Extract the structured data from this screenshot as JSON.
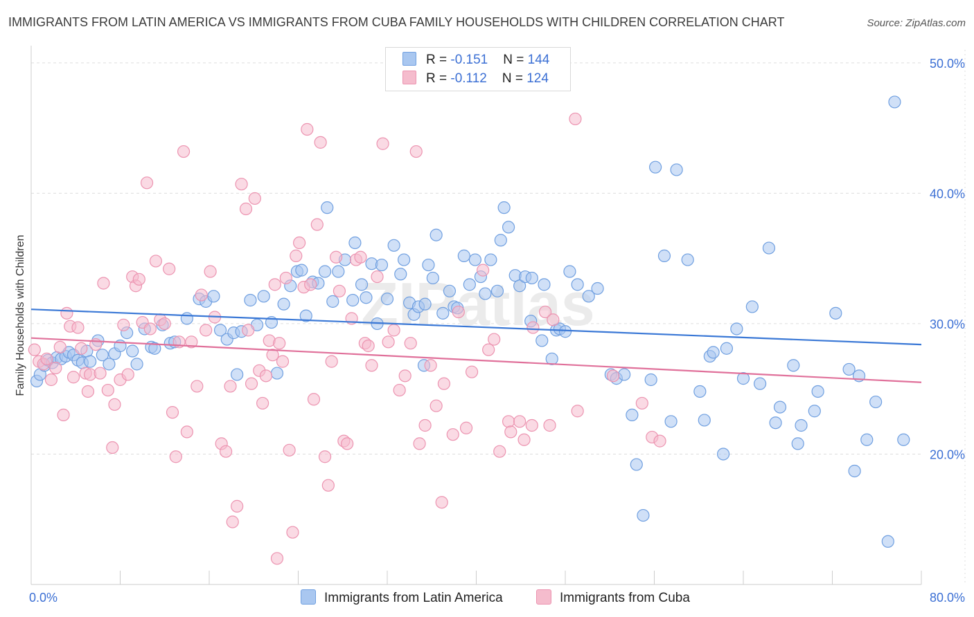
{
  "title": "IMMIGRANTS FROM LATIN AMERICA VS IMMIGRANTS FROM CUBA FAMILY HOUSEHOLDS WITH CHILDREN CORRELATION CHART",
  "source": "Source: ZipAtlas.com",
  "watermark": "ZIPatlas",
  "colors": {
    "blue_fill": "#a9c7f0",
    "blue_stroke": "#6f9fe0",
    "blue_line": "#3a78d6",
    "pink_fill": "#f5bccd",
    "pink_stroke": "#ec93b0",
    "pink_line": "#e0709a",
    "axis_text": "#3b6fd4",
    "grid": "#dddddd"
  },
  "legend": {
    "rows": [
      {
        "r_label": "R = ",
        "r_value": "-0.151",
        "n_label": "N = ",
        "n_value": "144"
      },
      {
        "r_label": "R = ",
        "r_value": "-0.112",
        "n_label": "N = ",
        "n_value": "124"
      }
    ]
  },
  "chart_data": {
    "type": "scatter",
    "xlabel": "",
    "ylabel": "Family Households with Children",
    "xlim": [
      0,
      80
    ],
    "ylim": [
      10,
      51
    ],
    "x_tick_labels": [
      {
        "value": 0,
        "label": "0.0%"
      },
      {
        "value": 80,
        "label": "80.0%"
      }
    ],
    "y_tick_labels": [
      {
        "value": 20,
        "label": "20.0%"
      },
      {
        "value": 30,
        "label": "30.0%"
      },
      {
        "value": 40,
        "label": "40.0%"
      },
      {
        "value": 50,
        "label": "50.0%"
      }
    ],
    "x_minor_ticks": [
      0,
      8,
      16,
      24,
      32,
      40,
      48,
      56,
      64,
      72,
      80
    ],
    "grid": true,
    "series": [
      {
        "name": "Immigrants from Latin America",
        "color": "blue",
        "trend": {
          "x": [
            0,
            80
          ],
          "y": [
            31.1,
            28.4
          ]
        },
        "points": [
          [
            0.5,
            25.6
          ],
          [
            0.8,
            26.1
          ],
          [
            1.2,
            26.8
          ],
          [
            1.5,
            27.2
          ],
          [
            1.9,
            27.0
          ],
          [
            2.3,
            27.4
          ],
          [
            2.7,
            27.3
          ],
          [
            3.1,
            27.5
          ],
          [
            3.4,
            27.8
          ],
          [
            3.8,
            27.6
          ],
          [
            4.2,
            27.2
          ],
          [
            4.6,
            27.0
          ],
          [
            5.0,
            27.9
          ],
          [
            5.3,
            27.1
          ],
          [
            6.0,
            28.7
          ],
          [
            6.4,
            27.6
          ],
          [
            7.0,
            26.9
          ],
          [
            7.5,
            27.7
          ],
          [
            8.0,
            28.3
          ],
          [
            8.6,
            29.3
          ],
          [
            9.1,
            27.9
          ],
          [
            9.5,
            26.9
          ],
          [
            10.2,
            29.6
          ],
          [
            10.8,
            28.2
          ],
          [
            11.1,
            28.1
          ],
          [
            11.8,
            29.9
          ],
          [
            12.5,
            28.5
          ],
          [
            12.9,
            28.6
          ],
          [
            14.0,
            30.4
          ],
          [
            15.1,
            31.9
          ],
          [
            15.7,
            31.7
          ],
          [
            16.4,
            32.1
          ],
          [
            17.0,
            29.5
          ],
          [
            17.6,
            28.8
          ],
          [
            18.2,
            29.3
          ],
          [
            18.5,
            26.1
          ],
          [
            18.9,
            29.4
          ],
          [
            19.7,
            31.8
          ],
          [
            20.3,
            29.9
          ],
          [
            20.9,
            32.1
          ],
          [
            21.6,
            30.1
          ],
          [
            22.1,
            26.2
          ],
          [
            22.7,
            31.5
          ],
          [
            23.3,
            32.9
          ],
          [
            23.9,
            34.0
          ],
          [
            24.3,
            34.1
          ],
          [
            24.7,
            30.6
          ],
          [
            25.3,
            33.2
          ],
          [
            25.8,
            33.1
          ],
          [
            26.4,
            34.0
          ],
          [
            26.6,
            38.9
          ],
          [
            27.1,
            31.7
          ],
          [
            27.6,
            34.0
          ],
          [
            28.2,
            34.9
          ],
          [
            28.9,
            31.8
          ],
          [
            29.1,
            36.2
          ],
          [
            29.7,
            33.0
          ],
          [
            30.1,
            32.0
          ],
          [
            30.6,
            34.6
          ],
          [
            31.1,
            30.0
          ],
          [
            31.5,
            34.5
          ],
          [
            32.0,
            31.9
          ],
          [
            32.6,
            36.0
          ],
          [
            33.2,
            33.8
          ],
          [
            33.5,
            34.9
          ],
          [
            34.0,
            31.6
          ],
          [
            34.4,
            30.7
          ],
          [
            34.8,
            31.3
          ],
          [
            35.3,
            26.8
          ],
          [
            35.7,
            34.5
          ],
          [
            36.1,
            33.5
          ],
          [
            36.4,
            36.8
          ],
          [
            37.0,
            30.8
          ],
          [
            37.6,
            32.5
          ],
          [
            38.0,
            31.3
          ],
          [
            38.3,
            31.2
          ],
          [
            38.9,
            35.2
          ],
          [
            39.4,
            33.0
          ],
          [
            39.9,
            34.9
          ],
          [
            40.4,
            33.6
          ],
          [
            40.8,
            32.3
          ],
          [
            41.3,
            34.9
          ],
          [
            41.9,
            32.5
          ],
          [
            42.2,
            36.4
          ],
          [
            42.5,
            38.9
          ],
          [
            42.9,
            37.4
          ],
          [
            43.5,
            33.7
          ],
          [
            43.9,
            32.9
          ],
          [
            44.4,
            33.6
          ],
          [
            44.9,
            30.2
          ],
          [
            45.0,
            33.5
          ],
          [
            45.9,
            28.7
          ],
          [
            46.1,
            33.0
          ],
          [
            46.8,
            27.3
          ],
          [
            47.2,
            29.5
          ],
          [
            47.5,
            29.6
          ],
          [
            48.0,
            29.4
          ],
          [
            48.4,
            34.0
          ],
          [
            49.1,
            33.0
          ],
          [
            50.1,
            32.1
          ],
          [
            50.9,
            32.7
          ],
          [
            52.1,
            26.1
          ],
          [
            52.6,
            25.8
          ],
          [
            53.3,
            26.1
          ],
          [
            54.0,
            23.0
          ],
          [
            54.4,
            19.2
          ],
          [
            55.0,
            15.3
          ],
          [
            55.7,
            25.7
          ],
          [
            56.1,
            42.0
          ],
          [
            56.9,
            35.2
          ],
          [
            57.5,
            22.5
          ],
          [
            58.0,
            41.8
          ],
          [
            59.0,
            34.9
          ],
          [
            60.1,
            24.8
          ],
          [
            60.5,
            22.6
          ],
          [
            61.0,
            27.5
          ],
          [
            61.3,
            27.8
          ],
          [
            62.2,
            20.0
          ],
          [
            62.5,
            28.1
          ],
          [
            63.4,
            29.6
          ],
          [
            64.0,
            25.8
          ],
          [
            64.8,
            31.3
          ],
          [
            65.5,
            25.4
          ],
          [
            66.3,
            35.8
          ],
          [
            66.9,
            22.4
          ],
          [
            67.3,
            23.6
          ],
          [
            68.5,
            26.8
          ],
          [
            68.9,
            20.8
          ],
          [
            69.2,
            22.2
          ],
          [
            70.4,
            23.3
          ],
          [
            70.7,
            24.8
          ],
          [
            72.3,
            30.8
          ],
          [
            73.5,
            26.5
          ],
          [
            74.0,
            18.7
          ],
          [
            74.4,
            26.0
          ],
          [
            75.1,
            21.1
          ],
          [
            75.9,
            24.0
          ],
          [
            77.6,
            47.0
          ],
          [
            78.4,
            21.1
          ],
          [
            77.0,
            13.3
          ],
          [
            35.4,
            31.5
          ]
        ]
      },
      {
        "name": "Immigrants from Cuba",
        "color": "pink",
        "trend": {
          "x": [
            0,
            80
          ],
          "y": [
            28.9,
            25.5
          ]
        },
        "points": [
          [
            0.3,
            28.0
          ],
          [
            0.7,
            27.1
          ],
          [
            1.1,
            26.9
          ],
          [
            1.4,
            27.3
          ],
          [
            1.8,
            25.7
          ],
          [
            2.2,
            26.6
          ],
          [
            2.6,
            28.2
          ],
          [
            2.9,
            23.0
          ],
          [
            3.2,
            30.8
          ],
          [
            3.5,
            29.8
          ],
          [
            3.8,
            25.9
          ],
          [
            4.2,
            29.7
          ],
          [
            4.5,
            28.1
          ],
          [
            4.9,
            26.2
          ],
          [
            5.1,
            24.8
          ],
          [
            5.3,
            26.1
          ],
          [
            5.8,
            28.4
          ],
          [
            6.2,
            26.2
          ],
          [
            6.5,
            33.1
          ],
          [
            6.9,
            24.9
          ],
          [
            7.3,
            20.5
          ],
          [
            7.5,
            23.8
          ],
          [
            8.0,
            25.7
          ],
          [
            8.3,
            29.9
          ],
          [
            8.7,
            26.1
          ],
          [
            9.1,
            33.6
          ],
          [
            9.4,
            32.9
          ],
          [
            9.7,
            33.4
          ],
          [
            10.0,
            30.1
          ],
          [
            10.4,
            40.8
          ],
          [
            10.7,
            29.6
          ],
          [
            11.2,
            34.8
          ],
          [
            11.6,
            30.3
          ],
          [
            12.0,
            30.0
          ],
          [
            12.4,
            34.2
          ],
          [
            12.7,
            23.2
          ],
          [
            13.0,
            19.8
          ],
          [
            13.3,
            28.6
          ],
          [
            13.7,
            43.2
          ],
          [
            14.0,
            21.7
          ],
          [
            14.4,
            28.6
          ],
          [
            14.9,
            25.2
          ],
          [
            15.3,
            32.2
          ],
          [
            15.7,
            29.5
          ],
          [
            16.1,
            34.0
          ],
          [
            16.5,
            30.5
          ],
          [
            17.1,
            20.8
          ],
          [
            17.5,
            20.2
          ],
          [
            17.9,
            25.2
          ],
          [
            18.1,
            14.8
          ],
          [
            18.5,
            16.0
          ],
          [
            18.9,
            40.7
          ],
          [
            19.3,
            38.8
          ],
          [
            19.5,
            29.5
          ],
          [
            19.8,
            25.4
          ],
          [
            20.1,
            39.6
          ],
          [
            20.5,
            26.4
          ],
          [
            20.8,
            23.9
          ],
          [
            21.1,
            26.0
          ],
          [
            21.4,
            28.7
          ],
          [
            21.7,
            27.6
          ],
          [
            21.9,
            33.0
          ],
          [
            22.1,
            12.0
          ],
          [
            22.3,
            28.5
          ],
          [
            22.6,
            27.1
          ],
          [
            22.9,
            33.5
          ],
          [
            23.2,
            20.3
          ],
          [
            23.5,
            14.0
          ],
          [
            23.8,
            35.2
          ],
          [
            24.1,
            36.2
          ],
          [
            24.5,
            32.8
          ],
          [
            24.8,
            44.9
          ],
          [
            25.1,
            33.0
          ],
          [
            25.4,
            24.2
          ],
          [
            25.7,
            37.6
          ],
          [
            26.0,
            43.9
          ],
          [
            26.4,
            19.8
          ],
          [
            26.7,
            17.6
          ],
          [
            27.0,
            27.1
          ],
          [
            27.4,
            35.1
          ],
          [
            27.7,
            32.5
          ],
          [
            28.1,
            21.0
          ],
          [
            28.4,
            20.8
          ],
          [
            28.8,
            30.4
          ],
          [
            29.2,
            34.9
          ],
          [
            29.6,
            35.1
          ],
          [
            30.0,
            28.5
          ],
          [
            30.3,
            28.3
          ],
          [
            30.6,
            26.8
          ],
          [
            31.1,
            33.6
          ],
          [
            31.6,
            43.8
          ],
          [
            32.1,
            28.6
          ],
          [
            32.6,
            29.5
          ],
          [
            33.1,
            24.9
          ],
          [
            33.6,
            26.0
          ],
          [
            34.1,
            28.5
          ],
          [
            34.6,
            43.2
          ],
          [
            34.9,
            20.8
          ],
          [
            35.4,
            22.2
          ],
          [
            35.9,
            26.8
          ],
          [
            36.4,
            23.7
          ],
          [
            36.9,
            16.3
          ],
          [
            37.1,
            25.4
          ],
          [
            37.9,
            21.5
          ],
          [
            38.4,
            30.9
          ],
          [
            39.1,
            22.0
          ],
          [
            39.6,
            26.3
          ],
          [
            40.6,
            34.1
          ],
          [
            41.1,
            28.0
          ],
          [
            41.6,
            28.8
          ],
          [
            42.1,
            20.2
          ],
          [
            42.9,
            22.5
          ],
          [
            43.1,
            21.7
          ],
          [
            43.9,
            22.5
          ],
          [
            44.3,
            21.1
          ],
          [
            45.0,
            22.2
          ],
          [
            45.1,
            29.7
          ],
          [
            46.2,
            30.9
          ],
          [
            46.6,
            22.2
          ],
          [
            46.9,
            30.3
          ],
          [
            48.9,
            45.7
          ],
          [
            49.1,
            23.3
          ],
          [
            52.3,
            26.0
          ],
          [
            54.9,
            23.9
          ],
          [
            55.8,
            21.3
          ],
          [
            56.5,
            21.0
          ]
        ]
      }
    ]
  },
  "bottom_legend": [
    {
      "label": "Immigrants from Latin America"
    },
    {
      "label": "Immigrants from Cuba"
    }
  ]
}
